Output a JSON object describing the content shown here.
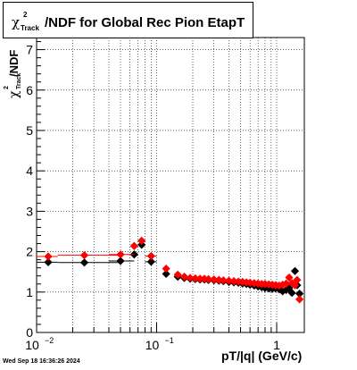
{
  "header": {
    "title_chi": "χ",
    "title_sup": "2",
    "title_sub": "Track",
    "title_rest": "/NDF for Global Rec Pion EtapT"
  },
  "yaxis": {
    "chi": "χ",
    "sup": "2",
    "sub": "Track",
    "rest": "/NDF"
  },
  "xaxis": {
    "label": "pT/|q| (GeV/c)"
  },
  "footer": {
    "timestamp": "Wed Sep 18 16:36:26 2024"
  },
  "chart_data": {
    "type": "scatter",
    "title": "χ²_Track/NDF for Global Rec Pion EtapT",
    "xlabel": "pT/|q| (GeV/c)",
    "ylabel": "χ²_Track/NDF",
    "xscale": "log",
    "xlim": [
      0.01,
      1.7
    ],
    "ylim": [
      0,
      7.3
    ],
    "grid": true,
    "y_ticks": [
      0,
      1,
      2,
      3,
      4,
      5,
      6,
      7
    ],
    "x_ticks": [
      {
        "value": 0.01,
        "label": "10",
        "sup": "−2"
      },
      {
        "value": 0.1,
        "label": "10",
        "sup": "−1"
      },
      {
        "value": 1,
        "label": "1",
        "sup": ""
      }
    ],
    "series": [
      {
        "color": "#000000",
        "points": [
          {
            "x": 0.0125,
            "y": 1.74,
            "xw": [
              0.01,
              0.015
            ]
          },
          {
            "x": 0.025,
            "y": 1.73,
            "xw": [
              0.015,
              0.05
            ]
          },
          {
            "x": 0.05,
            "y": 1.77,
            "xw": [
              0.04,
              0.065
            ]
          },
          {
            "x": 0.065,
            "y": 1.93
          },
          {
            "x": 0.075,
            "y": 2.17
          },
          {
            "x": 0.09,
            "y": 1.75,
            "xw": [
              0.08,
              0.1
            ]
          },
          {
            "x": 0.12,
            "y": 1.45
          },
          {
            "x": 0.15,
            "y": 1.38
          },
          {
            "x": 0.17,
            "y": 1.35
          },
          {
            "x": 0.19,
            "y": 1.33
          },
          {
            "x": 0.21,
            "y": 1.32
          },
          {
            "x": 0.23,
            "y": 1.31
          },
          {
            "x": 0.25,
            "y": 1.31
          },
          {
            "x": 0.27,
            "y": 1.3
          },
          {
            "x": 0.3,
            "y": 1.29
          },
          {
            "x": 0.33,
            "y": 1.28
          },
          {
            "x": 0.36,
            "y": 1.27
          },
          {
            "x": 0.4,
            "y": 1.25
          },
          {
            "x": 0.44,
            "y": 1.24
          },
          {
            "x": 0.48,
            "y": 1.23
          },
          {
            "x": 0.52,
            "y": 1.21
          },
          {
            "x": 0.56,
            "y": 1.2
          },
          {
            "x": 0.6,
            "y": 1.18
          },
          {
            "x": 0.65,
            "y": 1.16
          },
          {
            "x": 0.7,
            "y": 1.14
          },
          {
            "x": 0.75,
            "y": 1.12
          },
          {
            "x": 0.8,
            "y": 1.1
          },
          {
            "x": 0.86,
            "y": 1.09
          },
          {
            "x": 0.92,
            "y": 1.08
          },
          {
            "x": 0.98,
            "y": 1.09
          },
          {
            "x": 1.05,
            "y": 1.07
          },
          {
            "x": 1.12,
            "y": 1.02
          },
          {
            "x": 1.2,
            "y": 1.05
          },
          {
            "x": 1.27,
            "y": 1.1
          },
          {
            "x": 1.34,
            "y": 0.98
          },
          {
            "x": 1.42,
            "y": 1.52
          },
          {
            "x": 1.48,
            "y": 1.17
          },
          {
            "x": 1.55,
            "y": 0.96
          }
        ]
      },
      {
        "color": "#ff0000",
        "points": [
          {
            "x": 0.0125,
            "y": 1.88,
            "xw": [
              0.01,
              0.015
            ]
          },
          {
            "x": 0.025,
            "y": 1.91,
            "xw": [
              0.015,
              0.05
            ]
          },
          {
            "x": 0.05,
            "y": 1.93,
            "xw": [
              0.04,
              0.065
            ]
          },
          {
            "x": 0.065,
            "y": 2.14
          },
          {
            "x": 0.075,
            "y": 2.27
          },
          {
            "x": 0.09,
            "y": 1.89,
            "xw": [
              0.08,
              0.1
            ]
          },
          {
            "x": 0.12,
            "y": 1.58
          },
          {
            "x": 0.15,
            "y": 1.43
          },
          {
            "x": 0.17,
            "y": 1.38
          },
          {
            "x": 0.19,
            "y": 1.35
          },
          {
            "x": 0.21,
            "y": 1.34
          },
          {
            "x": 0.23,
            "y": 1.33
          },
          {
            "x": 0.25,
            "y": 1.33
          },
          {
            "x": 0.27,
            "y": 1.32
          },
          {
            "x": 0.3,
            "y": 1.31
          },
          {
            "x": 0.33,
            "y": 1.3
          },
          {
            "x": 0.36,
            "y": 1.29
          },
          {
            "x": 0.4,
            "y": 1.28
          },
          {
            "x": 0.44,
            "y": 1.27
          },
          {
            "x": 0.48,
            "y": 1.26
          },
          {
            "x": 0.52,
            "y": 1.25
          },
          {
            "x": 0.56,
            "y": 1.24
          },
          {
            "x": 0.6,
            "y": 1.23
          },
          {
            "x": 0.65,
            "y": 1.22
          },
          {
            "x": 0.7,
            "y": 1.21
          },
          {
            "x": 0.75,
            "y": 1.2
          },
          {
            "x": 0.8,
            "y": 1.2
          },
          {
            "x": 0.86,
            "y": 1.19
          },
          {
            "x": 0.92,
            "y": 1.18
          },
          {
            "x": 0.98,
            "y": 1.17
          },
          {
            "x": 1.05,
            "y": 1.16
          },
          {
            "x": 1.12,
            "y": 1.18
          },
          {
            "x": 1.2,
            "y": 1.21
          },
          {
            "x": 1.27,
            "y": 1.36
          },
          {
            "x": 1.34,
            "y": 1.22
          },
          {
            "x": 1.42,
            "y": 1.17
          },
          {
            "x": 1.48,
            "y": 1.3
          },
          {
            "x": 1.55,
            "y": 0.82
          }
        ]
      }
    ]
  }
}
